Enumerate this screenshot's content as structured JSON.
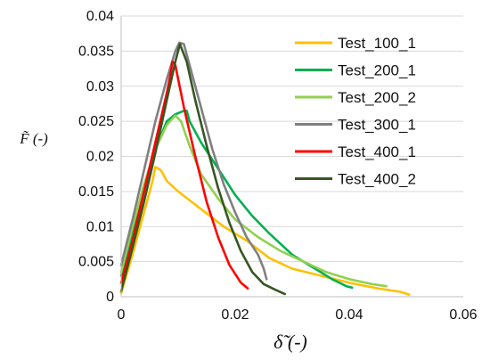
{
  "chart_data": {
    "type": "line",
    "title": "",
    "xlabel": "δ̃ (-)",
    "ylabel": "F̃ (-)",
    "xlim": [
      0,
      0.06
    ],
    "ylim": [
      0,
      0.04
    ],
    "x_ticks": [
      "0",
      "0.02",
      "0.04",
      "0.06"
    ],
    "y_ticks": [
      "0",
      "0.005",
      "0.01",
      "0.015",
      "0.02",
      "0.025",
      "0.03",
      "0.035",
      "0.04"
    ],
    "grid": "horizontal",
    "legend_position": "top-right",
    "series": [
      {
        "name": "Test_100_1",
        "color": "#FFC000",
        "points": [
          [
            0,
            0.0005
          ],
          [
            0.002,
            0.006
          ],
          [
            0.004,
            0.012
          ],
          [
            0.0055,
            0.0165
          ],
          [
            0.006,
            0.0185
          ],
          [
            0.007,
            0.018
          ],
          [
            0.008,
            0.0165
          ],
          [
            0.01,
            0.015
          ],
          [
            0.014,
            0.0125
          ],
          [
            0.018,
            0.01
          ],
          [
            0.022,
            0.008
          ],
          [
            0.026,
            0.0055
          ],
          [
            0.03,
            0.004
          ],
          [
            0.035,
            0.003
          ],
          [
            0.04,
            0.002
          ],
          [
            0.045,
            0.0012
          ],
          [
            0.049,
            0.0007
          ],
          [
            0.0505,
            0.0003
          ]
        ]
      },
      {
        "name": "Test_200_1",
        "color": "#00B050",
        "points": [
          [
            0,
            0.003
          ],
          [
            0.002,
            0.009
          ],
          [
            0.004,
            0.015
          ],
          [
            0.006,
            0.021
          ],
          [
            0.008,
            0.025
          ],
          [
            0.0095,
            0.026
          ],
          [
            0.011,
            0.0265
          ],
          [
            0.0115,
            0.0265
          ],
          [
            0.012,
            0.025
          ],
          [
            0.014,
            0.022
          ],
          [
            0.016,
            0.0195
          ],
          [
            0.018,
            0.017
          ],
          [
            0.02,
            0.0145
          ],
          [
            0.023,
            0.0115
          ],
          [
            0.026,
            0.009
          ],
          [
            0.03,
            0.006
          ],
          [
            0.033,
            0.0045
          ],
          [
            0.035,
            0.0035
          ],
          [
            0.037,
            0.0025
          ],
          [
            0.0395,
            0.0015
          ],
          [
            0.0405,
            0.0013
          ]
        ]
      },
      {
        "name": "Test_200_2",
        "color": "#92D050",
        "points": [
          [
            0,
            0.0035
          ],
          [
            0.002,
            0.01
          ],
          [
            0.004,
            0.016
          ],
          [
            0.006,
            0.021
          ],
          [
            0.008,
            0.0245
          ],
          [
            0.0095,
            0.0258
          ],
          [
            0.0105,
            0.025
          ],
          [
            0.012,
            0.0215
          ],
          [
            0.014,
            0.0175
          ],
          [
            0.017,
            0.014
          ],
          [
            0.02,
            0.011
          ],
          [
            0.024,
            0.0085
          ],
          [
            0.028,
            0.0065
          ],
          [
            0.032,
            0.005
          ],
          [
            0.036,
            0.0035
          ],
          [
            0.04,
            0.0025
          ],
          [
            0.044,
            0.0018
          ],
          [
            0.0465,
            0.0015
          ]
        ]
      },
      {
        "name": "Test_300_1",
        "color": "#808080",
        "points": [
          [
            0,
            0.0045
          ],
          [
            0.002,
            0.011
          ],
          [
            0.004,
            0.018
          ],
          [
            0.006,
            0.025
          ],
          [
            0.008,
            0.031
          ],
          [
            0.0095,
            0.035
          ],
          [
            0.0102,
            0.0362
          ],
          [
            0.011,
            0.036
          ],
          [
            0.012,
            0.033
          ],
          [
            0.014,
            0.027
          ],
          [
            0.016,
            0.021
          ],
          [
            0.018,
            0.016
          ],
          [
            0.02,
            0.012
          ],
          [
            0.022,
            0.0085
          ],
          [
            0.024,
            0.006
          ],
          [
            0.025,
            0.004
          ],
          [
            0.0255,
            0.0025
          ]
        ]
      },
      {
        "name": "Test_400_1",
        "color": "#FF0000",
        "points": [
          [
            0,
            0.002
          ],
          [
            0.002,
            0.008
          ],
          [
            0.004,
            0.015
          ],
          [
            0.006,
            0.022
          ],
          [
            0.008,
            0.029
          ],
          [
            0.0085,
            0.031
          ],
          [
            0.009,
            0.0335
          ],
          [
            0.0095,
            0.033
          ],
          [
            0.011,
            0.027
          ],
          [
            0.013,
            0.02
          ],
          [
            0.015,
            0.0135
          ],
          [
            0.017,
            0.0085
          ],
          [
            0.019,
            0.0045
          ],
          [
            0.021,
            0.002
          ],
          [
            0.0222,
            0.0012
          ]
        ]
      },
      {
        "name": "Test_400_2",
        "color": "#375623",
        "points": [
          [
            0,
            0.0008
          ],
          [
            0.002,
            0.007
          ],
          [
            0.004,
            0.0135
          ],
          [
            0.006,
            0.0205
          ],
          [
            0.008,
            0.028
          ],
          [
            0.0095,
            0.0335
          ],
          [
            0.0103,
            0.036
          ],
          [
            0.0115,
            0.0335
          ],
          [
            0.013,
            0.028
          ],
          [
            0.015,
            0.0215
          ],
          [
            0.017,
            0.0155
          ],
          [
            0.019,
            0.0105
          ],
          [
            0.021,
            0.0065
          ],
          [
            0.023,
            0.0035
          ],
          [
            0.025,
            0.0018
          ],
          [
            0.027,
            0.001
          ],
          [
            0.0287,
            0.0004
          ]
        ]
      }
    ]
  }
}
